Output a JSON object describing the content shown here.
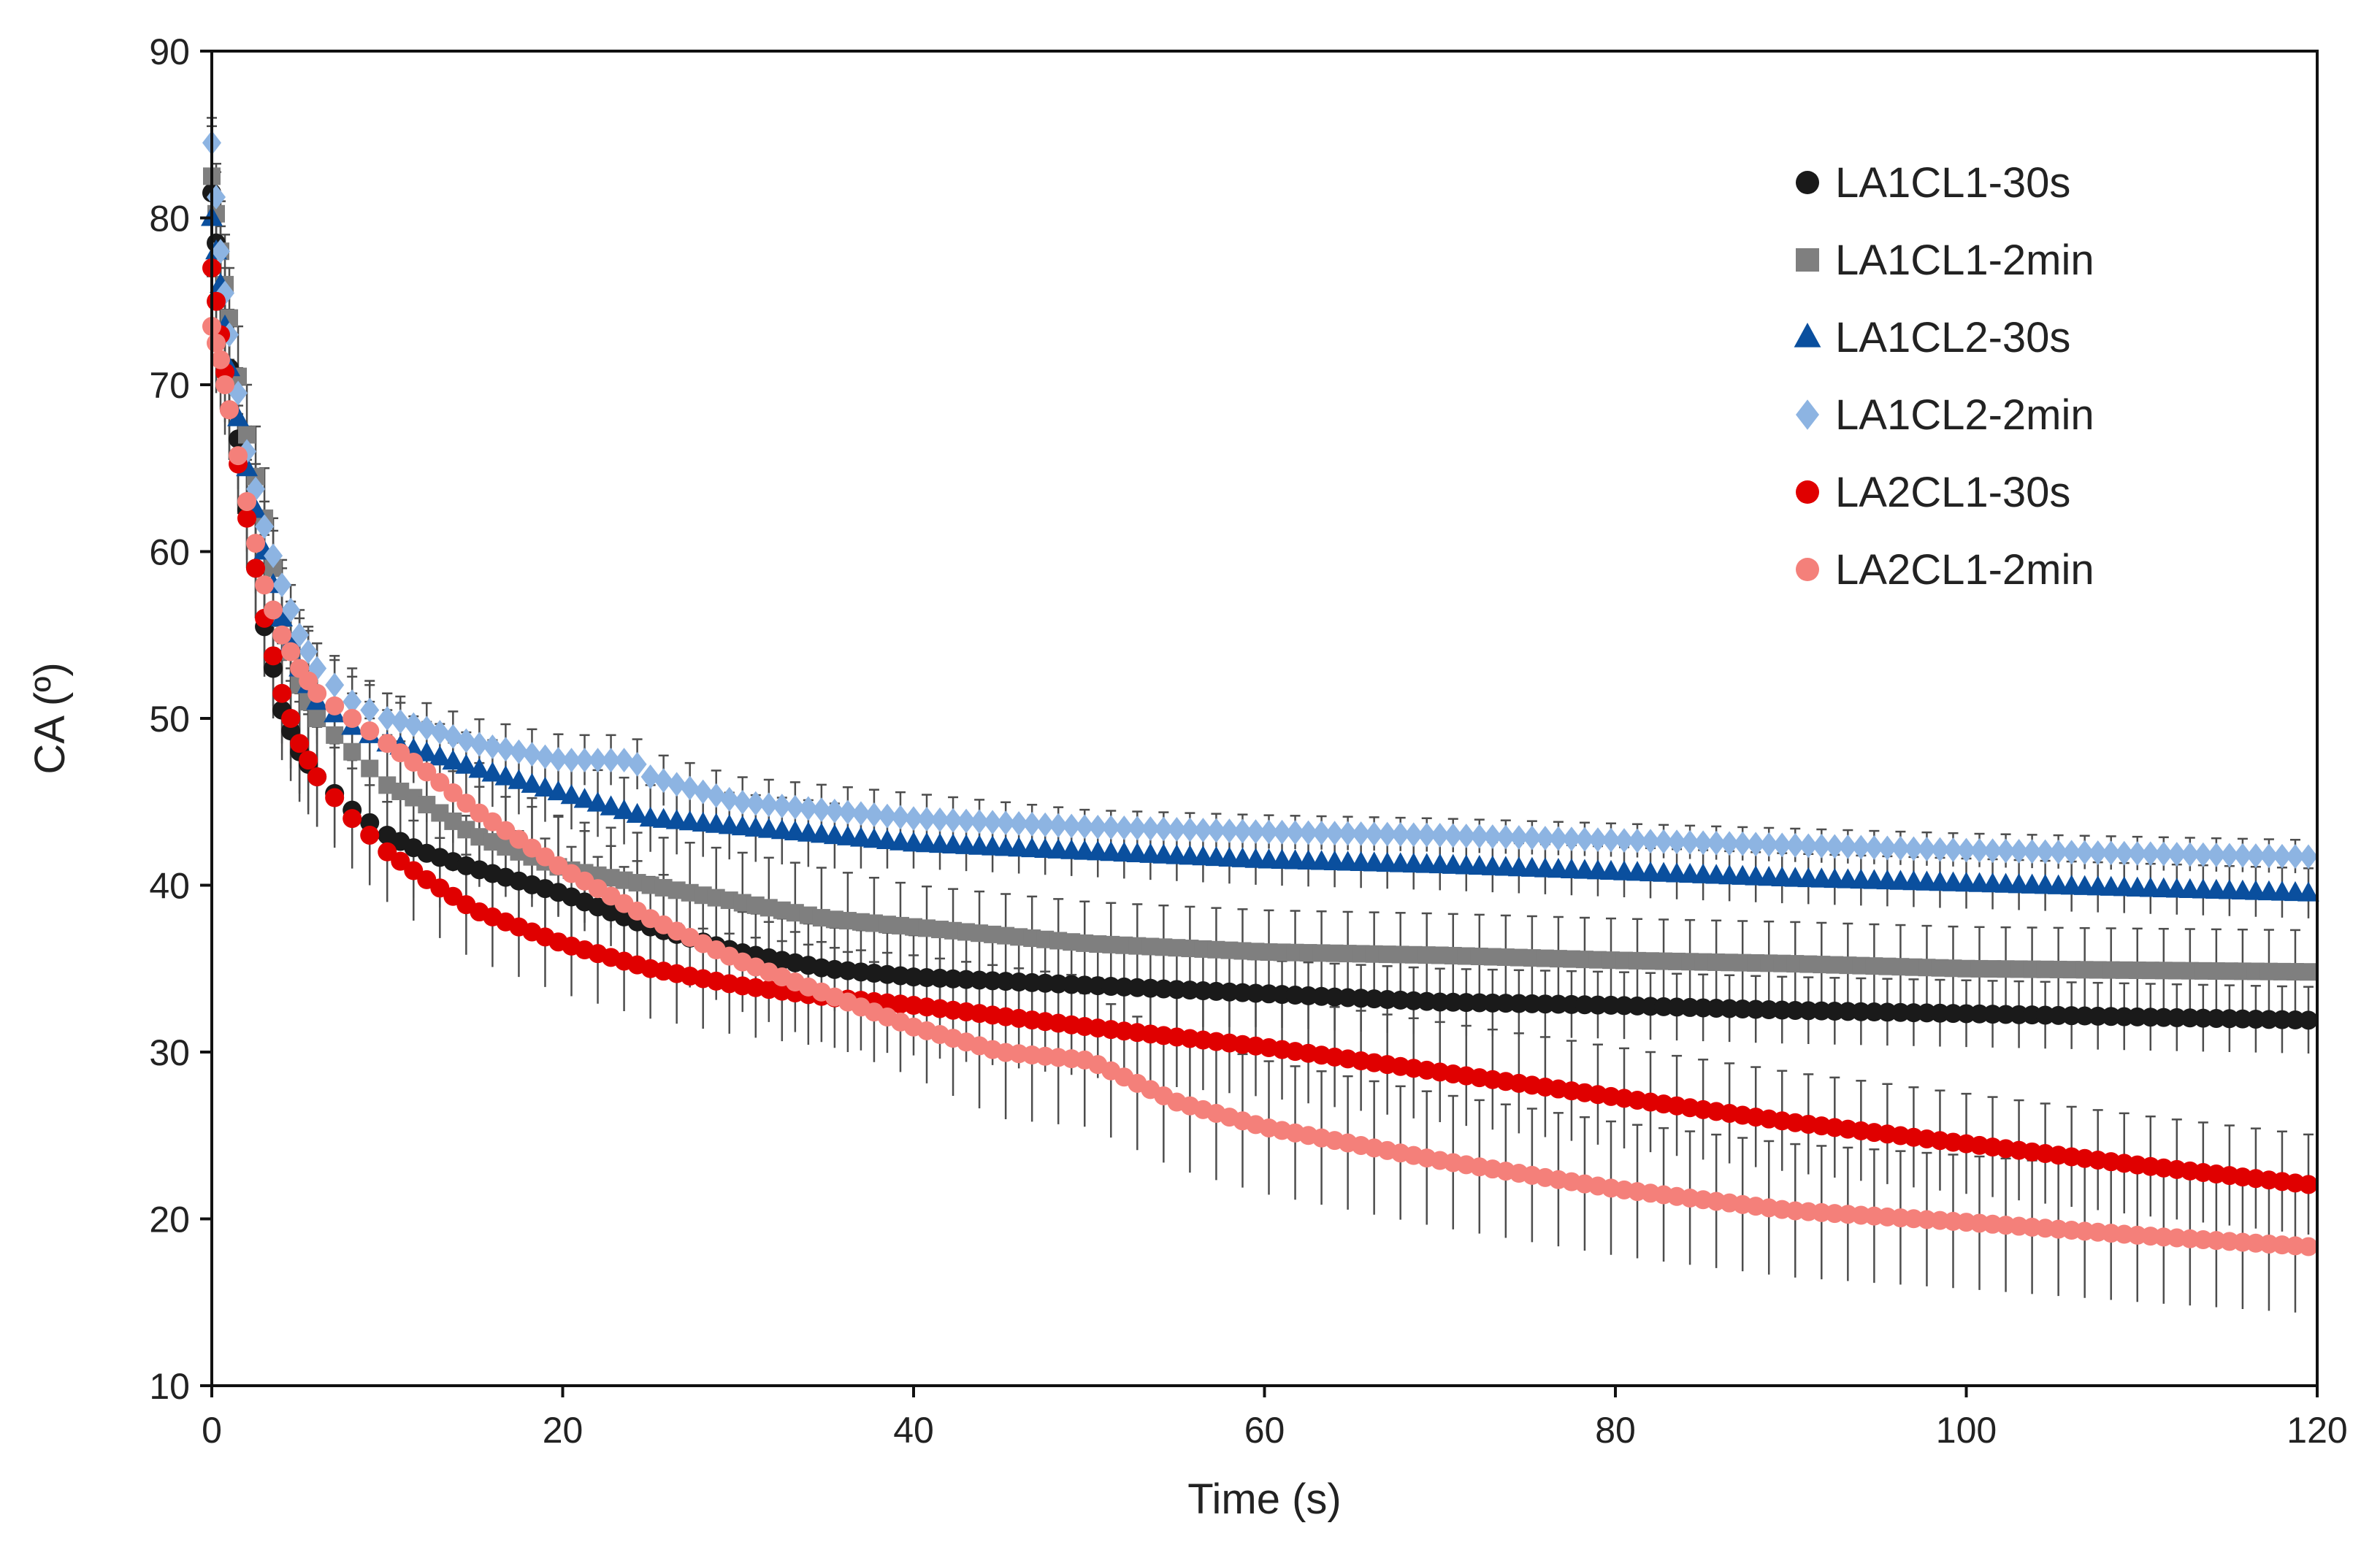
{
  "chart_data": {
    "type": "scatter",
    "title": "",
    "xlabel": "Time (s)",
    "ylabel": "CA (º)",
    "xlim": [
      0,
      120
    ],
    "ylim": [
      10,
      90
    ],
    "xticks": [
      0,
      20,
      40,
      60,
      80,
      100,
      120
    ],
    "yticks": [
      10,
      20,
      30,
      40,
      50,
      60,
      70,
      80,
      90
    ],
    "xtick_labels": [
      "0",
      "20",
      "40",
      "60",
      "80",
      "100",
      "120"
    ],
    "ytick_labels": [
      "10",
      "20",
      "30",
      "40",
      "50",
      "60",
      "70",
      "80",
      "90"
    ],
    "grid": false,
    "legend_position": "top-right",
    "error_bars": true,
    "error_bar_color": "#4d4d4d",
    "series": [
      {
        "name": "LA1CL1-30s",
        "color": "#1a1a1a",
        "marker": "circle",
        "x": [
          0,
          0.5,
          1,
          2,
          3,
          4,
          5,
          6,
          8,
          10,
          12,
          15,
          20,
          25,
          30,
          35,
          40,
          50,
          60,
          70,
          80,
          90,
          100,
          110,
          120
        ],
        "y": [
          81.5,
          75.5,
          71,
          62.5,
          55.5,
          50.5,
          48,
          46.5,
          44.5,
          43,
          42,
          41,
          39.5,
          37.5,
          36,
          35,
          34.5,
          34,
          33.5,
          33,
          32.8,
          32.5,
          32.3,
          32.1,
          31.9
        ],
        "err": [
          3,
          3,
          3,
          3,
          3,
          3,
          3,
          3,
          3,
          3,
          3,
          3,
          3,
          3,
          2.5,
          2.5,
          2.5,
          2.5,
          2,
          2,
          2,
          2,
          2,
          2,
          2
        ]
      },
      {
        "name": "LA1CL1-2min",
        "color": "#7f7f7f",
        "marker": "square",
        "x": [
          0,
          0.5,
          1,
          2,
          3,
          4,
          5,
          6,
          8,
          10,
          12,
          15,
          20,
          25,
          30,
          35,
          40,
          50,
          60,
          70,
          80,
          90,
          100,
          110,
          120
        ],
        "y": [
          82.5,
          78,
          74,
          67,
          62,
          56,
          52,
          50,
          48,
          46,
          45,
          43,
          41,
          40,
          39,
          38,
          37.5,
          36.5,
          36,
          35.8,
          35.5,
          35.3,
          35,
          34.9,
          34.8
        ],
        "err": [
          3,
          3,
          3,
          3,
          3,
          3,
          3,
          3,
          3,
          3,
          3,
          3,
          3,
          3,
          3,
          3,
          2.5,
          2.5,
          2.5,
          2.5,
          2.5,
          2.5,
          2.5,
          2.5,
          2.5
        ]
      },
      {
        "name": "LA1CL2-30s",
        "color": "#0a4f9e",
        "marker": "triangle",
        "x": [
          0,
          0.5,
          1,
          2,
          3,
          4,
          5,
          6,
          8,
          10,
          12,
          15,
          20,
          25,
          30,
          35,
          40,
          50,
          60,
          70,
          80,
          90,
          100,
          110,
          120
        ],
        "y": [
          80,
          76,
          71,
          65,
          60,
          56,
          53,
          51,
          49.5,
          48.5,
          48,
          47,
          45.5,
          44,
          43.5,
          43,
          42.5,
          42,
          41.5,
          41.2,
          40.8,
          40.4,
          40.1,
          39.8,
          39.5
        ],
        "err": [
          2,
          2,
          2,
          2,
          2,
          2,
          2,
          2,
          2,
          2,
          2,
          2,
          2,
          2,
          2,
          2,
          1.5,
          1.5,
          1.5,
          1.5,
          1.5,
          1.5,
          1.5,
          1.5,
          1.5
        ]
      },
      {
        "name": "LA1CL2-2min",
        "color": "#8db4e2",
        "marker": "diamond",
        "x": [
          0,
          0.5,
          1,
          2,
          3,
          4,
          5,
          6,
          8,
          10,
          12,
          15,
          20,
          24,
          25,
          30,
          35,
          40,
          50,
          60,
          70,
          80,
          90,
          100,
          110,
          120
        ],
        "y": [
          84.5,
          78,
          73,
          66,
          61.5,
          58,
          55,
          53,
          51,
          50,
          49.5,
          48.5,
          47.5,
          47.5,
          46.5,
          45,
          44.5,
          44,
          43.5,
          43.2,
          43,
          42.7,
          42.4,
          42.1,
          41.9,
          41.7
        ],
        "err": [
          1.5,
          1.5,
          1.5,
          1.5,
          1.5,
          1.5,
          1.5,
          1.5,
          1.5,
          1.5,
          1.5,
          1.5,
          1.5,
          1.5,
          1.5,
          1.5,
          1.5,
          1.5,
          1,
          1,
          1,
          1,
          1,
          1,
          1,
          1
        ]
      },
      {
        "name": "LA2CL1-30s",
        "color": "#e00000",
        "marker": "circle",
        "x": [
          0,
          0.5,
          1,
          2,
          3,
          4,
          5,
          6,
          8,
          10,
          12,
          15,
          20,
          25,
          30,
          35,
          40,
          50,
          60,
          70,
          80,
          90,
          100,
          110,
          120
        ],
        "y": [
          77,
          73,
          68.5,
          62,
          56,
          51.5,
          48.5,
          46.5,
          44,
          42,
          40.5,
          38.5,
          36.5,
          35,
          34,
          33.3,
          32.8,
          31.5,
          30.3,
          28.8,
          27.3,
          25.8,
          24.5,
          23.2,
          22
        ],
        "err": [
          3,
          3,
          3,
          3,
          3,
          3,
          3,
          3,
          3,
          3,
          3,
          3,
          3,
          3,
          3,
          3,
          3,
          3,
          3,
          3,
          3,
          3,
          3,
          3,
          3
        ]
      },
      {
        "name": "LA2CL1-2min",
        "color": "#f4807a",
        "marker": "circle",
        "x": [
          0,
          0.5,
          1,
          2,
          3,
          4,
          5,
          6,
          8,
          10,
          12,
          15,
          20,
          25,
          30,
          35,
          40,
          45,
          50,
          55,
          60,
          70,
          80,
          90,
          100,
          110,
          120
        ],
        "y": [
          73.5,
          71.5,
          68.5,
          63,
          58,
          55,
          53,
          51.5,
          50,
          48.5,
          47,
          44.5,
          41,
          38,
          35.5,
          33.5,
          31.5,
          30,
          29.5,
          27,
          25.5,
          23.5,
          21.8,
          20.5,
          19.8,
          19,
          18.3
        ],
        "err": [
          3,
          3,
          3,
          3,
          3,
          3,
          3,
          3,
          3,
          3,
          3,
          3,
          3,
          3,
          3,
          3,
          3,
          4,
          4,
          4,
          4,
          4,
          4,
          4,
          4,
          4,
          4
        ]
      }
    ]
  }
}
